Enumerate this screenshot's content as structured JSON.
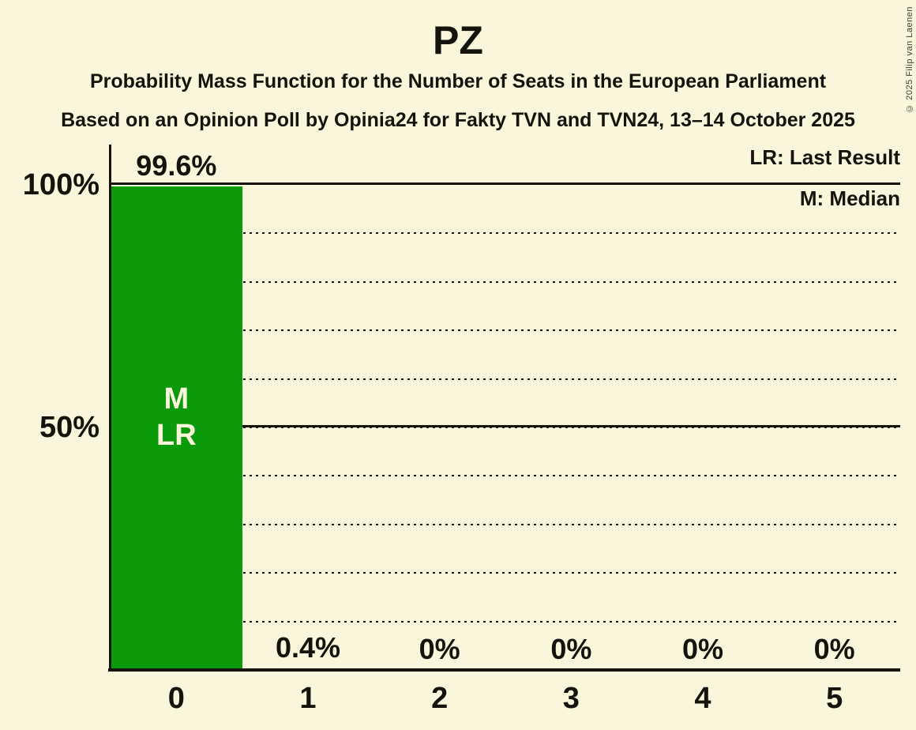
{
  "header": {
    "title": "PZ",
    "subtitle": "Probability Mass Function for the Number of Seats in the European Parliament",
    "poll_info": "Based on an Opinion Poll by Opinia24 for Fakty TVN and TVN24, 13–14 October 2025"
  },
  "copyright": "© 2025 Filip van Laenen",
  "legend": {
    "last_result": "LR: Last Result",
    "median": "M: Median"
  },
  "colors": {
    "background": "#faf6dc",
    "bar": "#0a9a0a",
    "text": "#14140c",
    "bar_annotation_text": "#faf6dc"
  },
  "chart_data": {
    "type": "bar",
    "title": "PZ",
    "categories": [
      "0",
      "1",
      "2",
      "3",
      "4",
      "5"
    ],
    "values": [
      99.6,
      0.4,
      0,
      0,
      0,
      0
    ],
    "value_labels": [
      "99.6%",
      "0.4%",
      "0%",
      "0%",
      "0%",
      "0%"
    ],
    "ylim": [
      0,
      100
    ],
    "y_ticks": [
      {
        "label": "100%",
        "value": 100
      },
      {
        "label": "50%",
        "value": 50
      }
    ],
    "gridlines": {
      "solid": [
        100,
        50
      ],
      "dotted": [
        90,
        80,
        70,
        60,
        50,
        40,
        30,
        20,
        10
      ]
    },
    "bar_annotations": [
      {
        "category_index": 0,
        "lines": [
          "M",
          "LR"
        ]
      }
    ],
    "legend_position": "top-right",
    "grid": "horizontal-dotted"
  }
}
